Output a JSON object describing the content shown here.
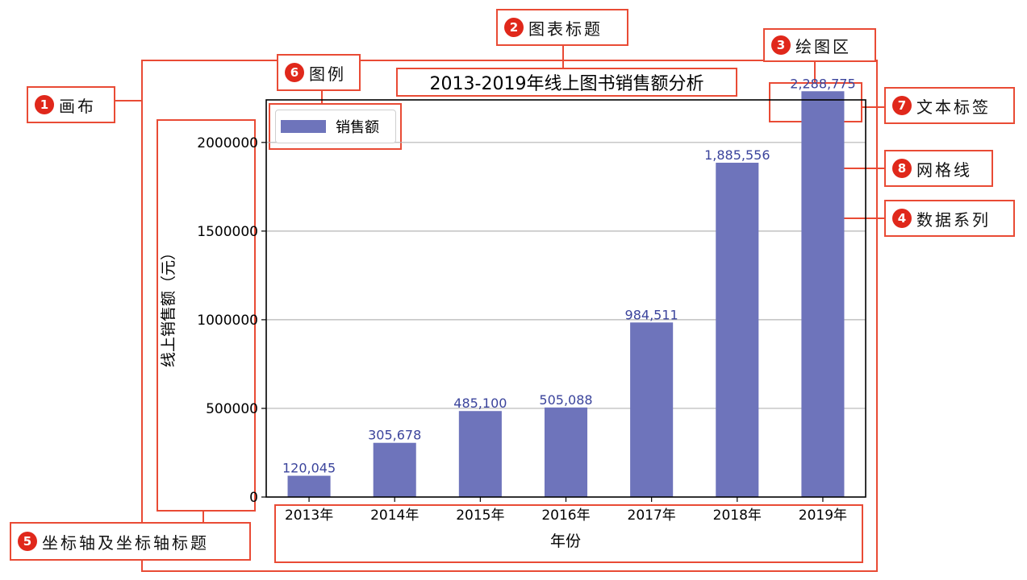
{
  "callouts": {
    "canvas": {
      "num": "1",
      "label": "画布"
    },
    "title": {
      "num": "2",
      "label": "图表标题"
    },
    "plot_area": {
      "num": "3",
      "label": "绘图区"
    },
    "data_series": {
      "num": "4",
      "label": "数据系列"
    },
    "axes": {
      "num": "5",
      "label": "坐标轴及坐标轴标题"
    },
    "legend": {
      "num": "6",
      "label": "图例"
    },
    "text_label": {
      "num": "7",
      "label": "文本标签"
    },
    "grid": {
      "num": "8",
      "label": "网格线"
    }
  },
  "chart_data": {
    "type": "bar",
    "title": "2013-2019年线上图书销售额分析",
    "xlabel": "年份",
    "ylabel": "线上销售额（元）",
    "categories": [
      "2013年",
      "2014年",
      "2015年",
      "2016年",
      "2017年",
      "2018年",
      "2019年"
    ],
    "series": [
      {
        "name": "销售额",
        "values": [
          120045,
          305678,
          485100,
          505088,
          984511,
          1885556,
          2288775
        ],
        "labels": [
          "120,045",
          "305,678",
          "485,100",
          "505,088",
          "984,511",
          "1,885,556",
          "2,288,775"
        ]
      }
    ],
    "ylim": [
      0,
      2240000
    ],
    "yticks": [
      0,
      500000,
      1000000,
      1500000,
      2000000
    ],
    "ytick_labels": [
      "0",
      "500000",
      "1000000",
      "1500000",
      "2000000"
    ],
    "grid": "horizontal",
    "legend_position": "top-left",
    "bar_color": "#6e74bb",
    "label_color": "#3b449c"
  },
  "colors": {
    "annotation": "#e94b35",
    "badge": "#e0281b"
  }
}
